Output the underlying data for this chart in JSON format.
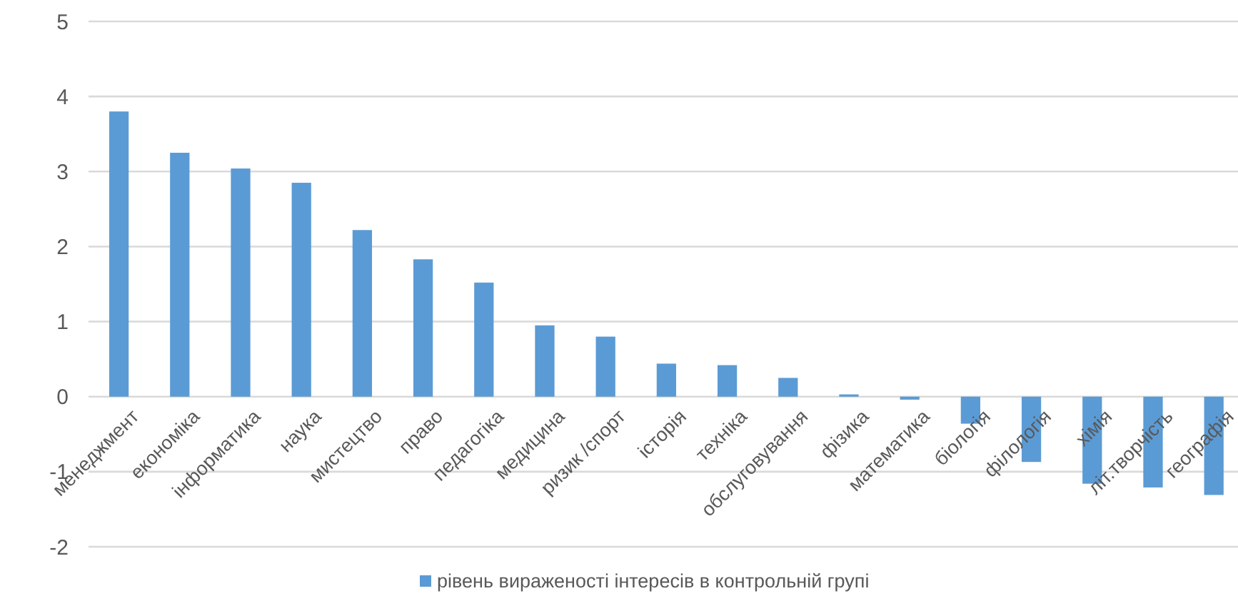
{
  "chart_data": {
    "type": "bar",
    "categories": [
      "менеджмент",
      "економіка",
      "інформатика",
      "наука",
      "мистецтво",
      "право",
      "педагогіка",
      "медицина",
      "ризик /спорт",
      "історія",
      "техніка",
      "обслуговування",
      "фізика",
      "математика",
      "біологія",
      "філологія",
      "хімія",
      "літ.творчість",
      "географія"
    ],
    "series": [
      {
        "name": "рівень вираженості інтересів в контрольній групі",
        "color": "#5b9bd5",
        "values": [
          3.8,
          3.25,
          3.04,
          2.85,
          2.22,
          1.83,
          1.52,
          0.95,
          0.8,
          0.44,
          0.42,
          0.25,
          0.03,
          -0.04,
          -0.36,
          -0.87,
          -1.16,
          -1.21,
          -1.31
        ]
      }
    ],
    "ylim": [
      -2,
      5
    ],
    "yticks": [
      -2,
      -1,
      0,
      1,
      2,
      3,
      4,
      5
    ],
    "grid": "y",
    "legend": "bottom"
  }
}
